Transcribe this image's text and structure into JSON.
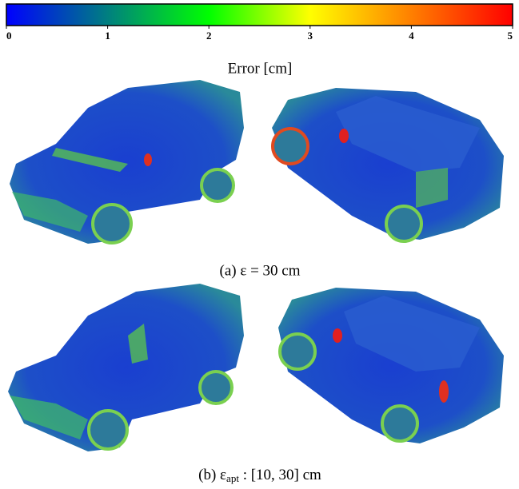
{
  "colorbar": {
    "label": "Error [cm]",
    "range": [
      0,
      5
    ],
    "ticks": [
      0,
      1,
      2,
      3,
      4,
      5
    ],
    "colormap": [
      {
        "value": 0,
        "color": "#0000ff"
      },
      {
        "value": 2,
        "color": "#00ff00"
      },
      {
        "value": 3,
        "color": "#ffff00"
      },
      {
        "value": 5,
        "color": "#ff0000"
      }
    ]
  },
  "panels": [
    {
      "caption": {
        "text": "(a) ε = 30 cm"
      }
    },
    {
      "caption": {
        "text": "(b) ε",
        "sub": "apt",
        "rest": " : [10, 30] cm"
      }
    }
  ]
}
